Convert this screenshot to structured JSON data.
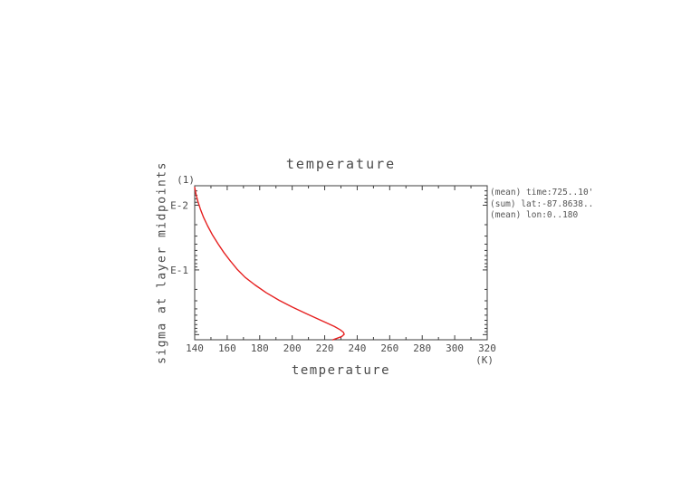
{
  "title": "temperature",
  "xlabel": "temperature",
  "x_unit": "(K)",
  "y_unit": "(1)",
  "ylabel": "sigma at layer midpoints",
  "annotations": [
    "(mean) time:725..10'",
    "(sum) lat:-87.8638..",
    "(mean) lon:0..180"
  ],
  "colors": {
    "curve": "#e62020",
    "axis": "#3c3c3c",
    "text": "#4a4a4a"
  },
  "chart_data": {
    "type": "line",
    "title": "temperature",
    "xlabel": "temperature (K)",
    "ylabel": "sigma at layer midpoints (1)",
    "x_ticks": [
      140,
      160,
      180,
      200,
      220,
      240,
      260,
      280,
      300,
      320
    ],
    "x_minor_step": 10,
    "y_ticks": [
      {
        "value": 0.01,
        "label": "E-2"
      },
      {
        "value": 0.1,
        "label": "E-1"
      }
    ],
    "xlim": [
      140,
      320
    ],
    "ylim": [
      0.005,
      1.2
    ],
    "y_scale": "log",
    "y_inverted": true,
    "grid": false,
    "legend": "none",
    "series": [
      {
        "name": "temperature",
        "color": "#e62020",
        "points_format": [
          "temperature_K",
          "sigma"
        ],
        "points": [
          [
            140.0,
            0.0053
          ],
          [
            140.8,
            0.0068
          ],
          [
            142.0,
            0.0088
          ],
          [
            143.5,
            0.0115
          ],
          [
            145.5,
            0.0155
          ],
          [
            148.0,
            0.021
          ],
          [
            151.0,
            0.029
          ],
          [
            154.5,
            0.04
          ],
          [
            158.0,
            0.054
          ],
          [
            162.0,
            0.073
          ],
          [
            166.0,
            0.097
          ],
          [
            171.0,
            0.13
          ],
          [
            177.0,
            0.17
          ],
          [
            184.0,
            0.225
          ],
          [
            192.0,
            0.295
          ],
          [
            200.0,
            0.375
          ],
          [
            208.0,
            0.465
          ],
          [
            215.0,
            0.56
          ],
          [
            221.0,
            0.655
          ],
          [
            226.0,
            0.75
          ],
          [
            229.5,
            0.84
          ],
          [
            231.5,
            0.92
          ],
          [
            232.0,
            0.99
          ],
          [
            230.5,
            1.07
          ],
          [
            227.5,
            1.14
          ],
          [
            225.0,
            1.2
          ]
        ]
      }
    ]
  }
}
